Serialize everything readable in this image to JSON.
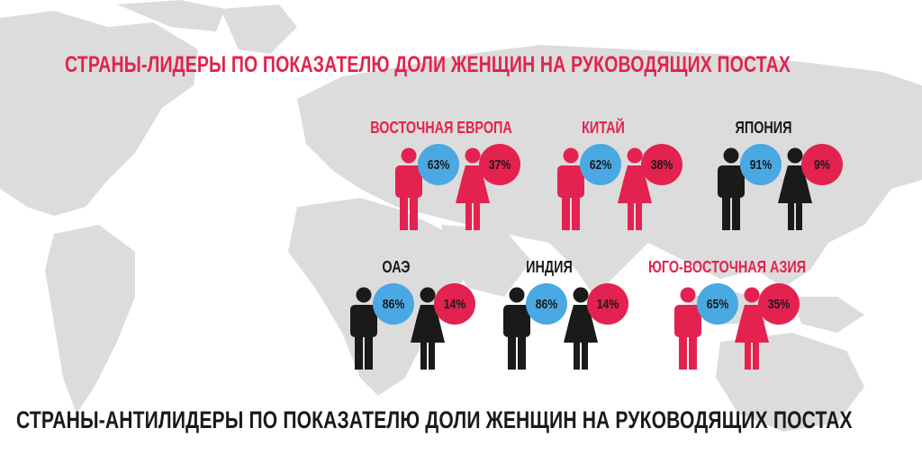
{
  "title_top": "СТРАНЫ-ЛИДЕРЫ ПО ПОКАЗАТЕЛЮ ДОЛИ ЖЕНЩИН НА РУКОВОДЯЩИХ ПОСТАХ",
  "title_bottom": "СТРАНЫ-АНТИЛИДЕРЫ ПО ПОКАЗАТЕЛЮ ДОЛИ ЖЕНЩИН НА РУКОВОДЯЩИХ ПОСТАХ",
  "colors": {
    "accent_red": "#e3224f",
    "badge_blue": "#4aa8e3",
    "dark": "#1a1a1a",
    "map_gray": "#d9d9d9"
  },
  "groups": [
    {
      "label": "ВОСТОЧНАЯ ЕВРОПА",
      "men": "63%",
      "women": "37%",
      "figure_color": "#e3224f",
      "label_color": "#e3224f"
    },
    {
      "label": "КИТАЙ",
      "men": "62%",
      "women": "38%",
      "figure_color": "#e3224f",
      "label_color": "#e3224f"
    },
    {
      "label": "ЯПОНИЯ",
      "men": "91%",
      "women": "9%",
      "figure_color": "#1a1a1a",
      "label_color": "#1a1a1a"
    },
    {
      "label": "ОАЭ",
      "men": "86%",
      "women": "14%",
      "figure_color": "#1a1a1a",
      "label_color": "#1a1a1a"
    },
    {
      "label": "ИНДИЯ",
      "men": "86%",
      "women": "14%",
      "figure_color": "#1a1a1a",
      "label_color": "#1a1a1a"
    },
    {
      "label": "ЮГО-ВОСТОЧНАЯ АЗИЯ",
      "men": "65%",
      "women": "35%",
      "figure_color": "#e3224f",
      "label_color": "#e3224f"
    }
  ],
  "icons": {
    "male": "male-figure-icon",
    "female": "female-figure-icon"
  }
}
